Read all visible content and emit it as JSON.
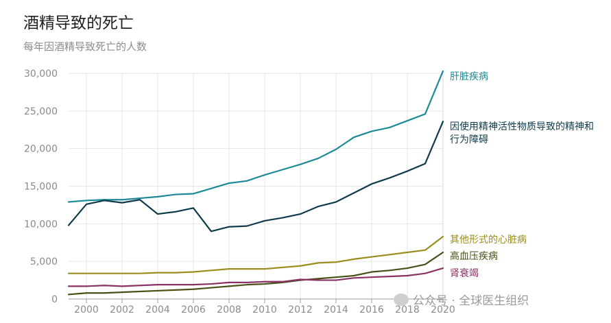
{
  "title": "酒精导致的死亡",
  "subtitle": "每年因酒精导致死亡的人数",
  "watermark": "公众号 · 全球医生组织",
  "chart_data": {
    "type": "line",
    "x": [
      1999,
      2000,
      2001,
      2002,
      2003,
      2004,
      2005,
      2006,
      2007,
      2008,
      2009,
      2010,
      2011,
      2012,
      2013,
      2014,
      2015,
      2016,
      2017,
      2018,
      2019,
      2020
    ],
    "xticks": [
      "2000",
      "2002",
      "2004",
      "2006",
      "2008",
      "2010",
      "2012",
      "2014",
      "2016",
      "2018",
      "2020"
    ],
    "yticks": [
      "0",
      "5,000",
      "10,000",
      "15,000",
      "20,000",
      "25,000",
      "30,000"
    ],
    "ylim": [
      0,
      30000
    ],
    "grid": true,
    "legend": "line-end labels",
    "series": [
      {
        "name": "肝脏疾病",
        "color": "#1b8a96",
        "values": [
          12900,
          13100,
          13200,
          13200,
          13400,
          13600,
          13900,
          14000,
          14700,
          15400,
          15700,
          16500,
          17200,
          17900,
          18700,
          19900,
          21500,
          22300,
          22800,
          23700,
          24600,
          30300
        ]
      },
      {
        "name": "因使用精神活性物质导致的精神和行为障碍",
        "color": "#0f3a4a",
        "values": [
          9800,
          12600,
          13100,
          12800,
          13200,
          11300,
          11600,
          12100,
          9000,
          9600,
          9700,
          10400,
          10800,
          11300,
          12300,
          12900,
          14100,
          15300,
          16100,
          17000,
          18000,
          23600
        ]
      },
      {
        "name": "其他形式的心脏病",
        "color": "#9a8d1e",
        "values": [
          3400,
          3400,
          3400,
          3400,
          3400,
          3500,
          3500,
          3600,
          3800,
          4000,
          4000,
          4000,
          4200,
          4400,
          4800,
          4900,
          5300,
          5600,
          5900,
          6200,
          6500,
          8300
        ]
      },
      {
        "name": "高血压疾病",
        "color": "#4a4f16",
        "values": [
          600,
          800,
          800,
          900,
          1000,
          1100,
          1200,
          1300,
          1500,
          1700,
          1900,
          2000,
          2200,
          2500,
          2700,
          2900,
          3100,
          3600,
          3800,
          4100,
          4600,
          6200
        ]
      },
      {
        "name": "肾衰竭",
        "color": "#8a3163",
        "values": [
          1700,
          1700,
          1800,
          1700,
          1800,
          1900,
          1900,
          1900,
          2000,
          2200,
          2200,
          2300,
          2300,
          2600,
          2500,
          2500,
          2800,
          2900,
          3000,
          3100,
          3400,
          4100
        ]
      }
    ]
  }
}
